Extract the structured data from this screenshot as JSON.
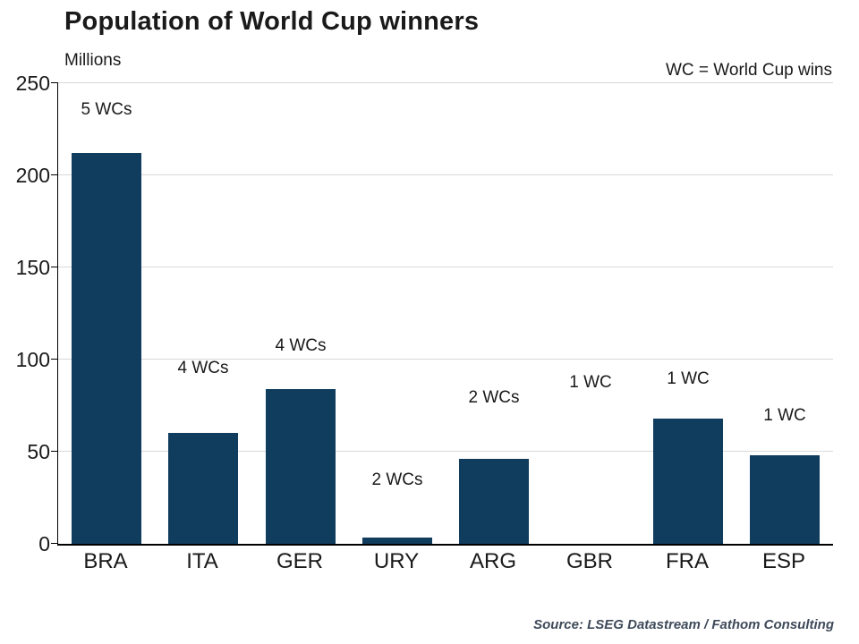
{
  "header": {
    "title": "Population of World Cup winners",
    "y_unit_label": "Millions",
    "legend_note": "WC = World Cup wins"
  },
  "footer": {
    "source": "Source: LSEG Datastream / Fathom Consulting"
  },
  "chart_data": {
    "type": "bar",
    "title": "Population of World Cup winners",
    "xlabel": "",
    "ylabel": "Millions",
    "ylim": [
      0,
      250
    ],
    "yticks": [
      0,
      50,
      100,
      150,
      200,
      250
    ],
    "grid": "horizontal",
    "legend_position": "none",
    "bar_color": "#103c5e",
    "categories": [
      "BRA",
      "ITA",
      "GER",
      "URY",
      "ARG",
      "GBR",
      "FRA",
      "ESP"
    ],
    "values": [
      212,
      60,
      84,
      3.5,
      46,
      0,
      68,
      48
    ],
    "annotations": [
      {
        "category": "BRA",
        "label": "5 WCs",
        "y": 230
      },
      {
        "category": "ITA",
        "label": "4 WCs",
        "y": 90
      },
      {
        "category": "GER",
        "label": "4 WCs",
        "y": 102
      },
      {
        "category": "URY",
        "label": "2 WCs",
        "y": 29
      },
      {
        "category": "ARG",
        "label": "2 WCs",
        "y": 74
      },
      {
        "category": "GBR",
        "label": "1 WC",
        "y": 82
      },
      {
        "category": "FRA",
        "label": "1 WC",
        "y": 84
      },
      {
        "category": "ESP",
        "label": "1 WC",
        "y": 64
      }
    ]
  }
}
